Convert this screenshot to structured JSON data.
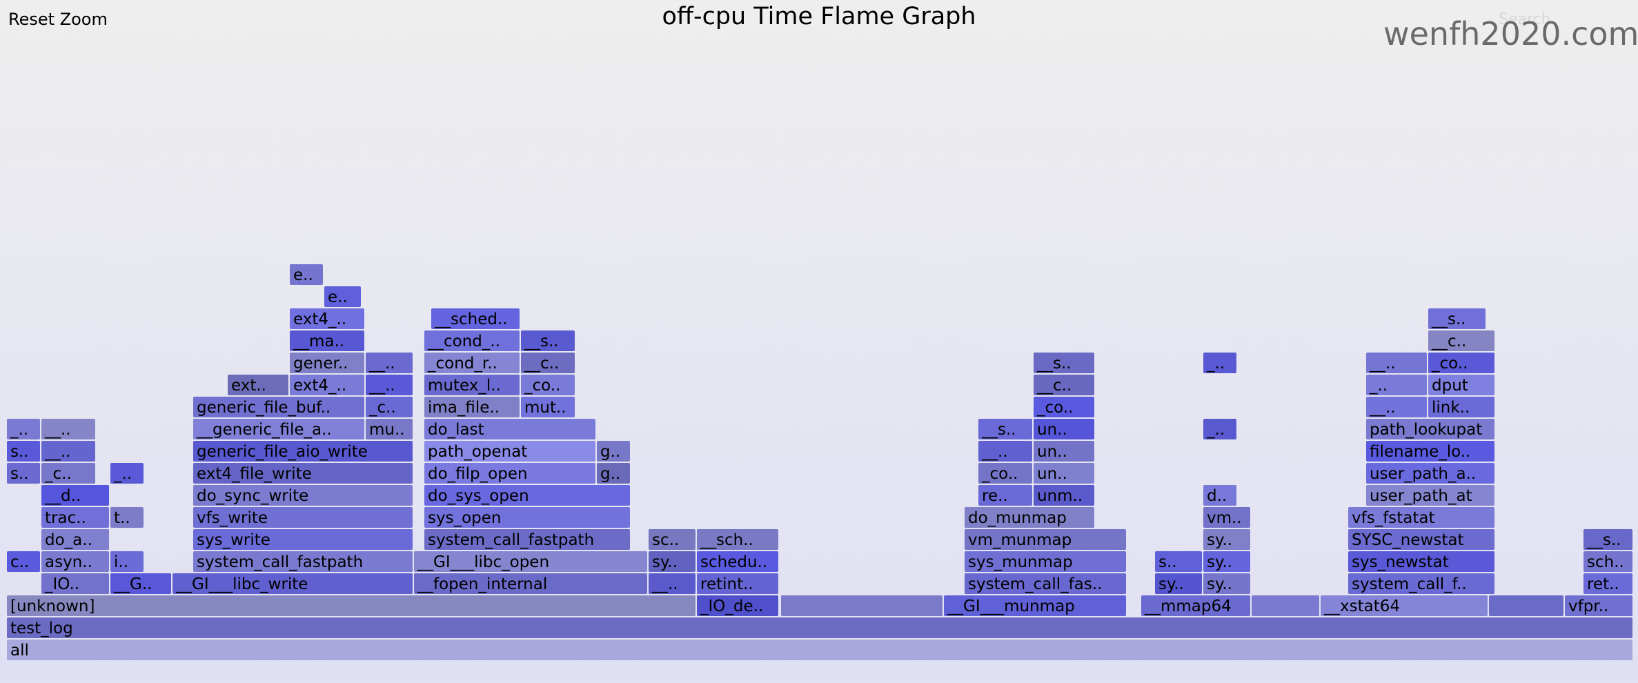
{
  "toolbar": {
    "reset_zoom": "Reset Zoom",
    "search": "Search"
  },
  "title": "off-cpu Time Flame Graph",
  "watermark": "wenfh2020.com",
  "colors": {
    "frame_palette": [
      "#5a5ae0",
      "#6a6ad8",
      "#7878e0",
      "#8080d0",
      "#6b6bb8",
      "#7a7ad8",
      "#5555cc",
      "#8888cc"
    ],
    "root": "#a8a8dc",
    "root_text": "#888888"
  },
  "chart_data": {
    "type": "flamegraph",
    "title": "off-cpu Time Flame Graph",
    "total": 2358,
    "frames": [
      {
        "label": "all",
        "start": 0,
        "width": 2358,
        "depth": 0,
        "color": "#a8a8dc"
      },
      {
        "label": "test_log",
        "start": 0,
        "width": 2358,
        "depth": 1,
        "color": "#6b6bc4"
      },
      {
        "label": "[unknown]",
        "start": 0,
        "width": 1000,
        "depth": 2,
        "color": "#8888c0"
      },
      {
        "label": "_IO_de..",
        "start": 1000,
        "width": 120,
        "depth": 2,
        "color": "#5050cc"
      },
      {
        "label": "",
        "start": 1122,
        "width": 236,
        "depth": 2,
        "color": "#7a7ac8"
      },
      {
        "label": "__GI___munmap",
        "start": 1358,
        "width": 266,
        "depth": 2,
        "color": "#6060d8"
      },
      {
        "label": "__mmap64",
        "start": 1644,
        "width": 160,
        "depth": 2,
        "color": "#6a6ad0"
      },
      {
        "label": "",
        "start": 1804,
        "width": 100,
        "depth": 2,
        "color": "#7a7ad0"
      },
      {
        "label": "__xstat64",
        "start": 1904,
        "width": 244,
        "depth": 2,
        "color": "#8585d8"
      },
      {
        "label": "",
        "start": 2148,
        "width": 110,
        "depth": 2,
        "color": "#6a6ac8"
      },
      {
        "label": "vfpr..",
        "start": 2258,
        "width": 100,
        "depth": 2,
        "color": "#7070d0"
      },
      {
        "label": "_IO..",
        "start": 50,
        "width": 100,
        "depth": 3,
        "color": "#7272cc"
      },
      {
        "label": "c..",
        "start": 0,
        "width": 50,
        "depth": 4,
        "color": "#5a5adc"
      },
      {
        "label": "asyn..",
        "start": 50,
        "width": 100,
        "depth": 4,
        "color": "#7a7ad0"
      },
      {
        "label": "do_a..",
        "start": 50,
        "width": 100,
        "depth": 5,
        "color": "#8080d0"
      },
      {
        "label": "trac..",
        "start": 50,
        "width": 100,
        "depth": 6,
        "color": "#7070d8"
      },
      {
        "label": "__d..",
        "start": 50,
        "width": 100,
        "depth": 7,
        "color": "#5555dd"
      },
      {
        "label": "_c..",
        "start": 50,
        "width": 80,
        "depth": 8,
        "color": "#7777cc"
      },
      {
        "label": "__..",
        "start": 50,
        "width": 80,
        "depth": 9,
        "color": "#6565d0"
      },
      {
        "label": "__..",
        "start": 50,
        "width": 80,
        "depth": 10,
        "color": "#8585c8"
      },
      {
        "label": "s..",
        "start": 0,
        "width": 50,
        "depth": 8,
        "color": "#6a6ad0"
      },
      {
        "label": "s..",
        "start": 0,
        "width": 50,
        "depth": 9,
        "color": "#5a5ad8"
      },
      {
        "label": "_..",
        "start": 0,
        "width": 50,
        "depth": 10,
        "color": "#7a7ad4"
      },
      {
        "label": "__G..",
        "start": 150,
        "width": 90,
        "depth": 3,
        "color": "#5858d8"
      },
      {
        "label": "i..",
        "start": 150,
        "width": 50,
        "depth": 4,
        "color": "#6c6cd8"
      },
      {
        "label": "t..",
        "start": 150,
        "width": 50,
        "depth": 6,
        "color": "#7c7cc8"
      },
      {
        "label": "_..",
        "start": 150,
        "width": 50,
        "depth": 8,
        "color": "#5a5ad8"
      },
      {
        "label": "__GI___libc_write",
        "start": 240,
        "width": 350,
        "depth": 3,
        "color": "#6060d0"
      },
      {
        "label": "system_call_fastpath",
        "start": 270,
        "width": 320,
        "depth": 4,
        "color": "#7a7ad0"
      },
      {
        "label": "sys_write",
        "start": 270,
        "width": 320,
        "depth": 5,
        "color": "#6a6ad8"
      },
      {
        "label": "vfs_write",
        "start": 270,
        "width": 320,
        "depth": 6,
        "color": "#7070d4"
      },
      {
        "label": "do_sync_write",
        "start": 270,
        "width": 320,
        "depth": 7,
        "color": "#7b7bd0"
      },
      {
        "label": "ext4_file_write",
        "start": 270,
        "width": 320,
        "depth": 8,
        "color": "#6565c8"
      },
      {
        "label": "generic_file_aio_write",
        "start": 270,
        "width": 320,
        "depth": 9,
        "color": "#5858d0"
      },
      {
        "label": "__generic_file_ai..",
        "start": 270,
        "width": 250,
        "depth": 10,
        "color": "#8080d8"
      },
      {
        "label": "mu..",
        "start": 520,
        "width": 70,
        "depth": 10,
        "color": "#7878c8"
      },
      {
        "label": "generic_file_buf..",
        "start": 270,
        "width": 250,
        "depth": 11,
        "color": "#7070d0"
      },
      {
        "label": "_c..",
        "start": 520,
        "width": 70,
        "depth": 11,
        "color": "#6a6ad4"
      },
      {
        "label": "ext..",
        "start": 320,
        "width": 90,
        "depth": 12,
        "color": "#6c6cb8"
      },
      {
        "label": "ext4_..",
        "start": 410,
        "width": 110,
        "depth": 12,
        "color": "#7a7ad8"
      },
      {
        "label": "__..",
        "start": 520,
        "width": 70,
        "depth": 12,
        "color": "#5a5ad8"
      },
      {
        "label": "gener..",
        "start": 410,
        "width": 110,
        "depth": 13,
        "color": "#8080c8"
      },
      {
        "label": "__..",
        "start": 520,
        "width": 70,
        "depth": 13,
        "color": "#6a6ad0"
      },
      {
        "label": "__ma..",
        "start": 410,
        "width": 110,
        "depth": 14,
        "color": "#5858d4"
      },
      {
        "label": "ext4_..",
        "start": 410,
        "width": 110,
        "depth": 15,
        "color": "#7070e0"
      },
      {
        "label": "e..",
        "start": 460,
        "width": 55,
        "depth": 16,
        "color": "#6060dd"
      },
      {
        "label": "e..",
        "start": 410,
        "width": 50,
        "depth": 17,
        "color": "#7575d0"
      },
      {
        "label": "__fopen_internal",
        "start": 590,
        "width": 340,
        "depth": 3,
        "color": "#6a6ac8"
      },
      {
        "label": "__GI___libc_open",
        "start": 590,
        "width": 340,
        "depth": 4,
        "color": "#8585d0"
      },
      {
        "label": "system_call_fastpath",
        "start": 605,
        "width": 300,
        "depth": 5,
        "color": "#6c6cc8"
      },
      {
        "label": "sys_open",
        "start": 605,
        "width": 300,
        "depth": 6,
        "color": "#7272dc"
      },
      {
        "label": "do_sys_open",
        "start": 605,
        "width": 300,
        "depth": 7,
        "color": "#6868e0"
      },
      {
        "label": "do_filp_open",
        "start": 605,
        "width": 250,
        "depth": 8,
        "color": "#7a7ae0"
      },
      {
        "label": "g..",
        "start": 855,
        "width": 50,
        "depth": 8,
        "color": "#6a6ab8"
      },
      {
        "label": "path_openat",
        "start": 605,
        "width": 250,
        "depth": 9,
        "color": "#8a8ae8"
      },
      {
        "label": "g..",
        "start": 855,
        "width": 50,
        "depth": 9,
        "color": "#7878c8"
      },
      {
        "label": "do_last",
        "start": 605,
        "width": 250,
        "depth": 10,
        "color": "#7a7ad8"
      },
      {
        "label": "ima_file..",
        "start": 605,
        "width": 140,
        "depth": 11,
        "color": "#8080c8"
      },
      {
        "label": "mut..",
        "start": 745,
        "width": 80,
        "depth": 11,
        "color": "#7272dc"
      },
      {
        "label": "mutex_l..",
        "start": 605,
        "width": 140,
        "depth": 12,
        "color": "#6a6ad0"
      },
      {
        "label": "_co..",
        "start": 745,
        "width": 80,
        "depth": 12,
        "color": "#7a7ad8"
      },
      {
        "label": "_cond_r..",
        "start": 605,
        "width": 140,
        "depth": 13,
        "color": "#8585d4"
      },
      {
        "label": "__c..",
        "start": 745,
        "width": 80,
        "depth": 13,
        "color": "#6c6cc0"
      },
      {
        "label": "__cond_..",
        "start": 605,
        "width": 140,
        "depth": 14,
        "color": "#7070dc"
      },
      {
        "label": "__s..",
        "start": 745,
        "width": 80,
        "depth": 14,
        "color": "#5a5ad0"
      },
      {
        "label": "__sched..",
        "start": 615,
        "width": 130,
        "depth": 15,
        "color": "#6464e0"
      },
      {
        "label": "__f..",
        "start": 930,
        "width": 70,
        "depth": 3,
        "color": "#5a5acc"
      },
      {
        "label": "sys..",
        "start": 930,
        "width": 70,
        "depth": 4,
        "color": "#6262c0"
      },
      {
        "label": "sc..",
        "start": 930,
        "width": 70,
        "depth": 5,
        "color": "#7878c0"
      },
      {
        "label": "retint_..",
        "start": 1000,
        "width": 120,
        "depth": 3,
        "color": "#6464d4"
      },
      {
        "label": "schedu..",
        "start": 1000,
        "width": 120,
        "depth": 4,
        "color": "#5a5ae0"
      },
      {
        "label": "__sch..",
        "start": 1000,
        "width": 120,
        "depth": 5,
        "color": "#7a7ac4"
      },
      {
        "label": "system_call_fast..",
        "start": 1388,
        "width": 236,
        "depth": 3,
        "color": "#6868d0"
      },
      {
        "label": "sys_munmap",
        "start": 1388,
        "width": 236,
        "depth": 4,
        "color": "#7070d4"
      },
      {
        "label": "vm_munmap",
        "start": 1388,
        "width": 236,
        "depth": 5,
        "color": "#7575c8"
      },
      {
        "label": "do_munmap",
        "start": 1388,
        "width": 190,
        "depth": 6,
        "color": "#8080c8"
      },
      {
        "label": "re..",
        "start": 1408,
        "width": 80,
        "depth": 7,
        "color": "#6a6ad8"
      },
      {
        "label": "unm..",
        "start": 1488,
        "width": 90,
        "depth": 7,
        "color": "#5a5acc"
      },
      {
        "label": "_co..",
        "start": 1408,
        "width": 80,
        "depth": 8,
        "color": "#7575c8"
      },
      {
        "label": "un..",
        "start": 1488,
        "width": 90,
        "depth": 8,
        "color": "#8080d0"
      },
      {
        "label": "__..",
        "start": 1408,
        "width": 80,
        "depth": 9,
        "color": "#6060d0"
      },
      {
        "label": "un..",
        "start": 1488,
        "width": 90,
        "depth": 9,
        "color": "#7373c8"
      },
      {
        "label": "__s..",
        "start": 1408,
        "width": 80,
        "depth": 10,
        "color": "#6a6ad8"
      },
      {
        "label": "un..",
        "start": 1488,
        "width": 90,
        "depth": 10,
        "color": "#5555d8"
      },
      {
        "label": "_co..",
        "start": 1488,
        "width": 90,
        "depth": 11,
        "color": "#5a5ae0"
      },
      {
        "label": "__c..",
        "start": 1488,
        "width": 90,
        "depth": 12,
        "color": "#6868c0"
      },
      {
        "label": "__s..",
        "start": 1488,
        "width": 90,
        "depth": 13,
        "color": "#6a6ac4"
      },
      {
        "label": "sy..",
        "start": 1664,
        "width": 70,
        "depth": 3,
        "color": "#5555d0"
      },
      {
        "label": "s..",
        "start": 1664,
        "width": 70,
        "depth": 4,
        "color": "#6060d8"
      },
      {
        "label": "sys..",
        "start": 1734,
        "width": 70,
        "depth": 3,
        "color": "#7575cc"
      },
      {
        "label": "sy..",
        "start": 1734,
        "width": 70,
        "depth": 4,
        "color": "#6464dc"
      },
      {
        "label": "sy..",
        "start": 1734,
        "width": 70,
        "depth": 5,
        "color": "#8080c8"
      },
      {
        "label": "vm..",
        "start": 1734,
        "width": 70,
        "depth": 6,
        "color": "#7272c8"
      },
      {
        "label": "d..",
        "start": 1734,
        "width": 50,
        "depth": 7,
        "color": "#7878d8"
      },
      {
        "label": "__..",
        "start": 1734,
        "width": 50,
        "depth": 10,
        "color": "#5a5ad0"
      },
      {
        "label": "__..",
        "start": 1734,
        "width": 50,
        "depth": 13,
        "color": "#5a5ad4"
      },
      {
        "label": "system_call_fas..",
        "start": 1944,
        "width": 214,
        "depth": 3,
        "color": "#6a6ad4"
      },
      {
        "label": "sys_newstat",
        "start": 1944,
        "width": 214,
        "depth": 4,
        "color": "#5a5ad8"
      },
      {
        "label": "SYSC_newstat",
        "start": 1944,
        "width": 214,
        "depth": 5,
        "color": "#6c6cd0"
      },
      {
        "label": "vfs_fstatat",
        "start": 1944,
        "width": 214,
        "depth": 6,
        "color": "#7a7ad8"
      },
      {
        "label": "user_path_at",
        "start": 1970,
        "width": 188,
        "depth": 7,
        "color": "#8585d0"
      },
      {
        "label": "user_path_at..",
        "start": 1970,
        "width": 188,
        "depth": 8,
        "color": "#6a6ae0"
      },
      {
        "label": "filename_lo..",
        "start": 1970,
        "width": 188,
        "depth": 9,
        "color": "#5a5ae0"
      },
      {
        "label": "path_lookupat",
        "start": 1970,
        "width": 188,
        "depth": 10,
        "color": "#7a7ad0"
      },
      {
        "label": "__..",
        "start": 1970,
        "width": 90,
        "depth": 11,
        "color": "#7373dc"
      },
      {
        "label": "link..",
        "start": 2060,
        "width": 98,
        "depth": 11,
        "color": "#6a6ad8"
      },
      {
        "label": "_..",
        "start": 1970,
        "width": 90,
        "depth": 12,
        "color": "#7a7ad8"
      },
      {
        "label": "dput",
        "start": 2060,
        "width": 98,
        "depth": 12,
        "color": "#8080e0"
      },
      {
        "label": "__..",
        "start": 1970,
        "width": 90,
        "depth": 13,
        "color": "#7575d4"
      },
      {
        "label": "_co..",
        "start": 2060,
        "width": 98,
        "depth": 13,
        "color": "#5a5ad8"
      },
      {
        "label": "__c..",
        "start": 2060,
        "width": 98,
        "depth": 14,
        "color": "#8585c4"
      },
      {
        "label": "__s..",
        "start": 2060,
        "width": 85,
        "depth": 15,
        "color": "#7070d8"
      },
      {
        "label": "reti..",
        "start": 2285,
        "width": 73,
        "depth": 3,
        "color": "#6a6ad8"
      },
      {
        "label": "sch..",
        "start": 2285,
        "width": 73,
        "depth": 4,
        "color": "#7575d0"
      },
      {
        "label": "__s..",
        "start": 2285,
        "width": 73,
        "depth": 5,
        "color": "#6868c8"
      }
    ]
  }
}
